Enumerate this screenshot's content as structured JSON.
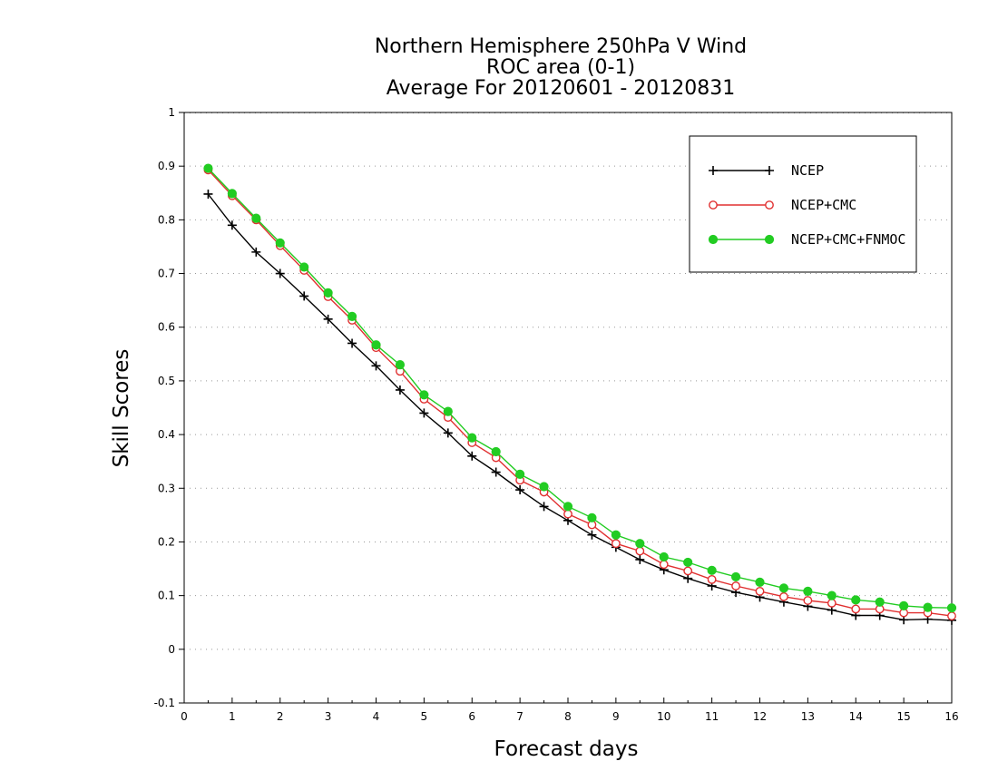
{
  "chart_data": {
    "type": "line",
    "title": [
      "Northern Hemisphere 250hPa V Wind",
      "ROC area (0-1)",
      "Average For 20120601 - 20120831"
    ],
    "xlabel": "Forecast days",
    "ylabel": "Skill Scores",
    "xlim": [
      0,
      16
    ],
    "ylim": [
      -0.1,
      1
    ],
    "xticks": [
      "0",
      "1",
      "2",
      "3",
      "4",
      "5",
      "6",
      "7",
      "8",
      "9",
      "10",
      "11",
      "12",
      "13",
      "14",
      "15",
      "16"
    ],
    "yticks": [
      "-0.1",
      "0",
      "0.1",
      "0.2",
      "0.3",
      "0.4",
      "0.5",
      "0.6",
      "0.7",
      "0.8",
      "0.9",
      "1"
    ],
    "grid": true,
    "legend_position": "top-right",
    "x": [
      0.5,
      1,
      1.5,
      2,
      2.5,
      3,
      3.5,
      4,
      4.5,
      5,
      5.5,
      6,
      6.5,
      7,
      7.5,
      8,
      8.5,
      9,
      9.5,
      10,
      10.5,
      11,
      11.5,
      12,
      12.5,
      13,
      13.5,
      14,
      14.5,
      15,
      15.5,
      16
    ],
    "series": [
      {
        "name": "NCEP",
        "color": "#000000",
        "marker": "plus",
        "values": [
          0.848,
          0.79,
          0.74,
          0.7,
          0.658,
          0.615,
          0.57,
          0.528,
          0.483,
          0.44,
          0.403,
          0.36,
          0.33,
          0.297,
          0.266,
          0.24,
          0.213,
          0.19,
          0.167,
          0.148,
          0.132,
          0.118,
          0.106,
          0.097,
          0.088,
          0.08,
          0.073,
          0.063,
          0.063,
          0.055,
          0.056,
          0.054
        ]
      },
      {
        "name": "NCEP+CMC",
        "color": "#e03030",
        "marker": "circle-open",
        "values": [
          0.893,
          0.845,
          0.8,
          0.752,
          0.706,
          0.657,
          0.613,
          0.562,
          0.518,
          0.466,
          0.432,
          0.385,
          0.357,
          0.315,
          0.293,
          0.252,
          0.232,
          0.197,
          0.183,
          0.158,
          0.146,
          0.13,
          0.118,
          0.108,
          0.098,
          0.091,
          0.086,
          0.075,
          0.075,
          0.068,
          0.068,
          0.062
        ]
      },
      {
        "name": "NCEP+CMC+FNMOC",
        "color": "#22cc22",
        "marker": "circle-filled",
        "values": [
          0.896,
          0.849,
          0.803,
          0.757,
          0.712,
          0.664,
          0.62,
          0.567,
          0.53,
          0.474,
          0.443,
          0.394,
          0.368,
          0.326,
          0.303,
          0.266,
          0.245,
          0.213,
          0.197,
          0.172,
          0.162,
          0.147,
          0.135,
          0.125,
          0.114,
          0.108,
          0.1,
          0.092,
          0.088,
          0.081,
          0.078,
          0.077
        ]
      }
    ]
  }
}
